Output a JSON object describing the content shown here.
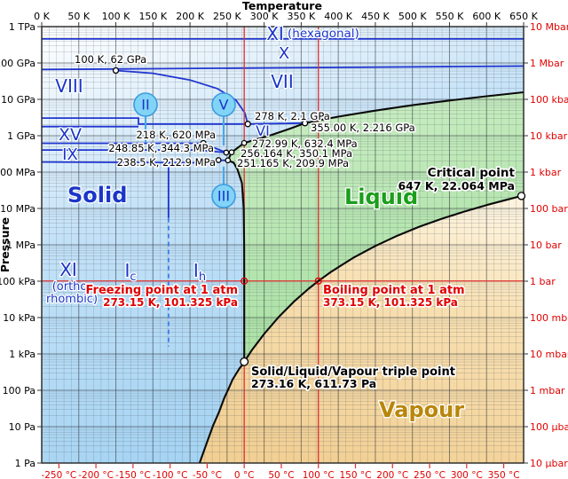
{
  "chart_data": {
    "type": "line",
    "x_axis": {
      "label": "Temperature",
      "unit": "K",
      "min_K": 0,
      "max_K": 650,
      "ticks": [
        "0 K",
        "50 K",
        "100 K",
        "150 K",
        "200 K",
        "250 K",
        "300 K",
        "350 K",
        "400 K",
        "450 K",
        "500 K",
        "550 K",
        "600 K",
        "650 K"
      ],
      "tick_values_K": [
        0,
        50,
        100,
        150,
        200,
        250,
        300,
        350,
        400,
        450,
        500,
        550,
        600,
        650
      ]
    },
    "x_axis_bottom": {
      "unit": "°C",
      "ticks": [
        "-250 °C",
        "-200 °C",
        "-150 °C",
        "-100 °C",
        "-50 °C",
        "0 °C",
        "50 °C",
        "100 °C",
        "150 °C",
        "200 °C",
        "250 °C",
        "300 °C",
        "350 °C"
      ],
      "tick_values_C": [
        -250,
        -200,
        -150,
        -100,
        -50,
        0,
        50,
        100,
        150,
        200,
        250,
        300,
        350
      ]
    },
    "y_axis": {
      "label": "Pressure",
      "scale": "log",
      "min_Pa": 1,
      "max_Pa": 1000000000000.0,
      "ticks_left": [
        "1 TPa",
        "100 GPa",
        "10 GPa",
        "1 GPa",
        "100 MPa",
        "10 MPa",
        "1 MPa",
        "100 kPa",
        "10 kPa",
        "1 kPa",
        "100 Pa",
        "10 Pa",
        "1 Pa"
      ],
      "ticks_right": [
        "10 Mbar",
        "1 Mbar",
        "100 kbar",
        "10 kbar",
        "1 kbar",
        "100 bar",
        "10 bar",
        "1 bar",
        "100 mbar",
        "10 mbar",
        "1 mbar",
        "100 µbar",
        "10 µbar"
      ]
    },
    "regions": [
      {
        "id": "solid",
        "label": "Solid",
        "label_color": "#1a35c8",
        "fill": "#b0d9f4"
      },
      {
        "id": "liquid",
        "label": "Liquid",
        "label_color": "#1b9e1b",
        "fill": "#b9e6b0"
      },
      {
        "id": "vapour",
        "label": "Vapour",
        "label_color": "#b8860b",
        "fill": "#f6d89f"
      }
    ],
    "ice_phase_labels": [
      {
        "id": "viii",
        "text": "VIII"
      },
      {
        "id": "xv",
        "text": "XV"
      },
      {
        "id": "ix",
        "text": "IX"
      },
      {
        "id": "vi",
        "text": "VI"
      },
      {
        "id": "vii",
        "text": "VII"
      },
      {
        "id": "x",
        "text": "X"
      },
      {
        "id": "xi-hex",
        "text": "XI",
        "suffix": "(hexagonal)"
      },
      {
        "id": "xi-ortho",
        "text": "XI",
        "suffix_lines": [
          "(ortho-",
          "rhombic)"
        ]
      },
      {
        "id": "ic",
        "text": "I",
        "sub": "c"
      },
      {
        "id": "ih",
        "text": "I",
        "sub": "h"
      }
    ],
    "ice_phase_badges": [
      {
        "id": "ii",
        "text": "II"
      },
      {
        "id": "v",
        "text": "V"
      },
      {
        "id": "iii",
        "text": "III"
      }
    ],
    "points": [
      {
        "id": "critical",
        "label": "Critical point",
        "value": "647 K, 22.064 MPa",
        "T_K": 647,
        "P_Pa": 22064000,
        "color": "black"
      },
      {
        "id": "triple",
        "label": "Solid/Liquid/Vapour triple point",
        "value": "273.16 K, 611.73 Pa",
        "T_K": 273.16,
        "P_Pa": 611.73,
        "color": "black"
      },
      {
        "id": "freezing",
        "label": "Freezing point at 1 atm",
        "value": "273.15 K, 101.325 kPa",
        "T_K": 273.15,
        "P_Pa": 101325,
        "color": "red"
      },
      {
        "id": "boiling",
        "label": "Boiling point at 1 atm",
        "value": "373.15 K, 101.325 kPa",
        "T_K": 373.15,
        "P_Pa": 101325,
        "color": "red"
      },
      {
        "id": "p100k",
        "value": "100 K, 62 GPa",
        "T_K": 100,
        "P_Pa": 62000000000,
        "color": "black"
      },
      {
        "id": "p278k",
        "value": "278 K, 2.1 GPa",
        "T_K": 278,
        "P_Pa": 2100000000,
        "color": "black"
      },
      {
        "id": "p218k",
        "value": "218 K, 620 MPa",
        "T_K": 218,
        "P_Pa": 620000000,
        "color": "black"
      },
      {
        "id": "p248k",
        "value": "248.85 K, 344.3 MPa",
        "T_K": 248.85,
        "P_Pa": 344300000,
        "color": "black"
      },
      {
        "id": "p238k",
        "value": "238.5 K, 212.9 MPa",
        "T_K": 238.5,
        "P_Pa": 212900000,
        "color": "black"
      },
      {
        "id": "p272k",
        "value": "272.99 K, 632.4 MPa",
        "T_K": 272.99,
        "P_Pa": 632400000,
        "color": "black"
      },
      {
        "id": "p256k",
        "value": "256.164 K, 350.1 MPa",
        "T_K": 256.164,
        "P_Pa": 350100000,
        "color": "black"
      },
      {
        "id": "p251k",
        "value": "251.165 K, 209.9 MPa",
        "T_K": 251.165,
        "P_Pa": 209900000,
        "color": "black"
      },
      {
        "id": "p355k",
        "value": "355.00 K, 2.216 GPa",
        "T_K": 355,
        "P_Pa": 2216000000,
        "color": "black"
      }
    ],
    "boundaries_black": {
      "sublimation": [
        [
          213,
          1
        ],
        [
          222,
          3.3
        ],
        [
          231,
          10.6
        ],
        [
          239,
          25
        ],
        [
          246.6,
          64
        ],
        [
          252.5,
          115
        ],
        [
          257.4,
          196
        ],
        [
          262.5,
          290
        ],
        [
          266.9,
          405
        ],
        [
          270.5,
          500
        ],
        [
          273.16,
          611.73
        ]
      ],
      "vaporization": [
        [
          273.16,
          611.73
        ],
        [
          283,
          1228
        ],
        [
          300,
          3537
        ],
        [
          320,
          10546
        ],
        [
          340,
          27188
        ],
        [
          360,
          62194
        ],
        [
          373.15,
          101325
        ],
        [
          390,
          179639
        ],
        [
          420,
          437000
        ],
        [
          450,
          932000
        ],
        [
          480,
          1790000
        ],
        [
          510,
          3180000
        ],
        [
          540,
          5240000
        ],
        [
          570,
          8200000
        ],
        [
          600,
          12345000
        ],
        [
          625,
          16900000
        ],
        [
          647,
          22064000
        ]
      ],
      "melting": [
        [
          273.16,
          611.73
        ],
        [
          273.15,
          101325
        ],
        [
          273.1,
          1000000
        ],
        [
          272.4,
          10000000
        ],
        [
          270,
          50000000
        ],
        [
          264,
          120000000
        ],
        [
          259,
          180000000
        ],
        [
          251.165,
          209900000
        ]
      ],
      "solid_liquid_high_pressure": [
        [
          251.165,
          209900000
        ],
        [
          256.164,
          350100000
        ],
        [
          272.99,
          632400000
        ],
        [
          310,
          1050000000
        ],
        [
          335,
          1570000000
        ],
        [
          355,
          2216000000
        ]
      ],
      "liquid_ice_vii": [
        [
          355,
          2216000000
        ],
        [
          400,
          3350000000
        ],
        [
          450,
          4900000000
        ],
        [
          500,
          6900000000
        ],
        [
          550,
          9300000000
        ],
        [
          600,
          12200000000
        ],
        [
          650,
          15700000000
        ]
      ]
    },
    "boundaries_blue": {
      "xi_hexagonal": [
        [
          0,
          457000000000
        ],
        [
          650,
          457000000000
        ]
      ],
      "ice_x_lower": [
        [
          0,
          66000000000
        ],
        [
          650,
          82000000000
        ]
      ],
      "viii_vii": [
        [
          100,
          62000000000
        ],
        [
          150,
          52000000000
        ],
        [
          200,
          34000000000
        ],
        [
          237,
          19700000000
        ],
        [
          262,
          9500000000
        ],
        [
          274,
          4200000000
        ],
        [
          278,
          2100000000
        ]
      ],
      "vi_vii": [
        [
          278,
          2100000000
        ],
        [
          355,
          2216000000
        ]
      ],
      "viii_vi": [
        [
          0,
          3050000000
        ],
        [
          130.5,
          3050000000
        ],
        [
          130.5,
          2100000000
        ],
        [
          278,
          2100000000
        ]
      ],
      "viii_xv": [
        [
          0,
          1780000000
        ],
        [
          130.5,
          1780000000
        ]
      ],
      "xv_lower": [
        [
          0,
          620000000
        ],
        [
          218,
          620000000
        ],
        [
          248.85,
          344300000
        ]
      ],
      "ix_upper": [
        [
          0,
          405000000
        ],
        [
          210,
          405000000
        ],
        [
          248.85,
          344300000
        ]
      ],
      "ix_lower": [
        [
          0,
          190000000
        ],
        [
          213,
          180000000
        ],
        [
          238.5,
          212900000
        ],
        [
          251.165,
          209900000
        ]
      ],
      "link_248_256": [
        [
          248.85,
          344300000
        ],
        [
          256.164,
          350100000
        ]
      ],
      "ih_left_vertical": [
        [
          171,
          210000000
        ],
        [
          171,
          5500000
        ]
      ]
    },
    "leaders_blue": {
      "leader_ii": [
        [
          140,
          3400000000
        ],
        [
          140,
          640000000
        ]
      ],
      "leader_v": [
        [
          245.4,
          3400000000
        ],
        [
          245.4,
          540000000
        ]
      ],
      "leader_iii": [
        [
          245.4,
          142000000
        ],
        [
          245.4,
          44000000
        ]
      ]
    },
    "boundary_blue_dashed": {
      "ic_ih": [
        [
          171,
          5500000
        ],
        [
          171,
          1600
        ]
      ]
    },
    "reference_lines": {
      "one_atm_Pa": 101325,
      "zero_C_K": 273.15,
      "hundred_C_K": 373.15
    },
    "grid": "on",
    "legend_position": "none"
  }
}
